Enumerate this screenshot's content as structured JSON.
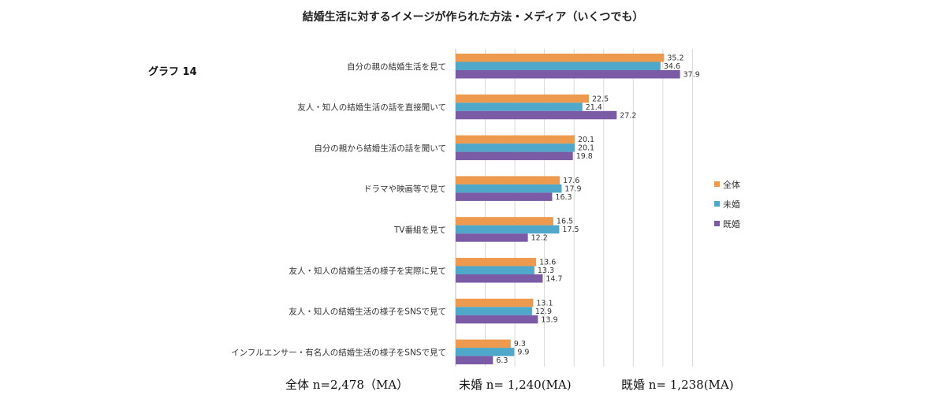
{
  "graph_label": "グラフ 14",
  "colors": {
    "all": "#ED9A4F",
    "unmarried": "#4FA8C9",
    "married": "#7C5BA6"
  },
  "footer": {
    "all": "全体 n=2,478（MA）",
    "unmarried": "未婚 n= 1,240(MA)",
    "married": "既婚 n= 1,238(MA)"
  },
  "chart_data": {
    "type": "bar",
    "orientation": "horizontal",
    "title": "結婚生活に対するイメージが作られた方法・メディア（いくつでも）",
    "categories": [
      "自分の親の結婚生活を見て",
      "友人・知人の結婚生活の話を直接聞いて",
      "自分の親から結婚生活の話を聞いて",
      "ドラマや映画等で見て",
      "TV番組を見て",
      "友人・知人の結婚生活の様子を実際に見て",
      "友人・知人の結婚生活の様子をSNSで見て",
      "インフルエンサー・有名人の結婚生活の様子をSNSで見て"
    ],
    "series": [
      {
        "name": "全体",
        "values": [
          35.2,
          22.5,
          20.1,
          17.6,
          16.5,
          13.6,
          13.1,
          9.3
        ]
      },
      {
        "name": "未婚",
        "values": [
          34.6,
          21.4,
          20.1,
          17.9,
          17.5,
          13.3,
          12.9,
          9.9
        ]
      },
      {
        "name": "既婚",
        "values": [
          37.9,
          27.2,
          19.8,
          16.3,
          12.2,
          14.7,
          13.9,
          6.3
        ]
      }
    ],
    "xlim": [
      0,
      40
    ],
    "grid": true,
    "legend": "right"
  }
}
